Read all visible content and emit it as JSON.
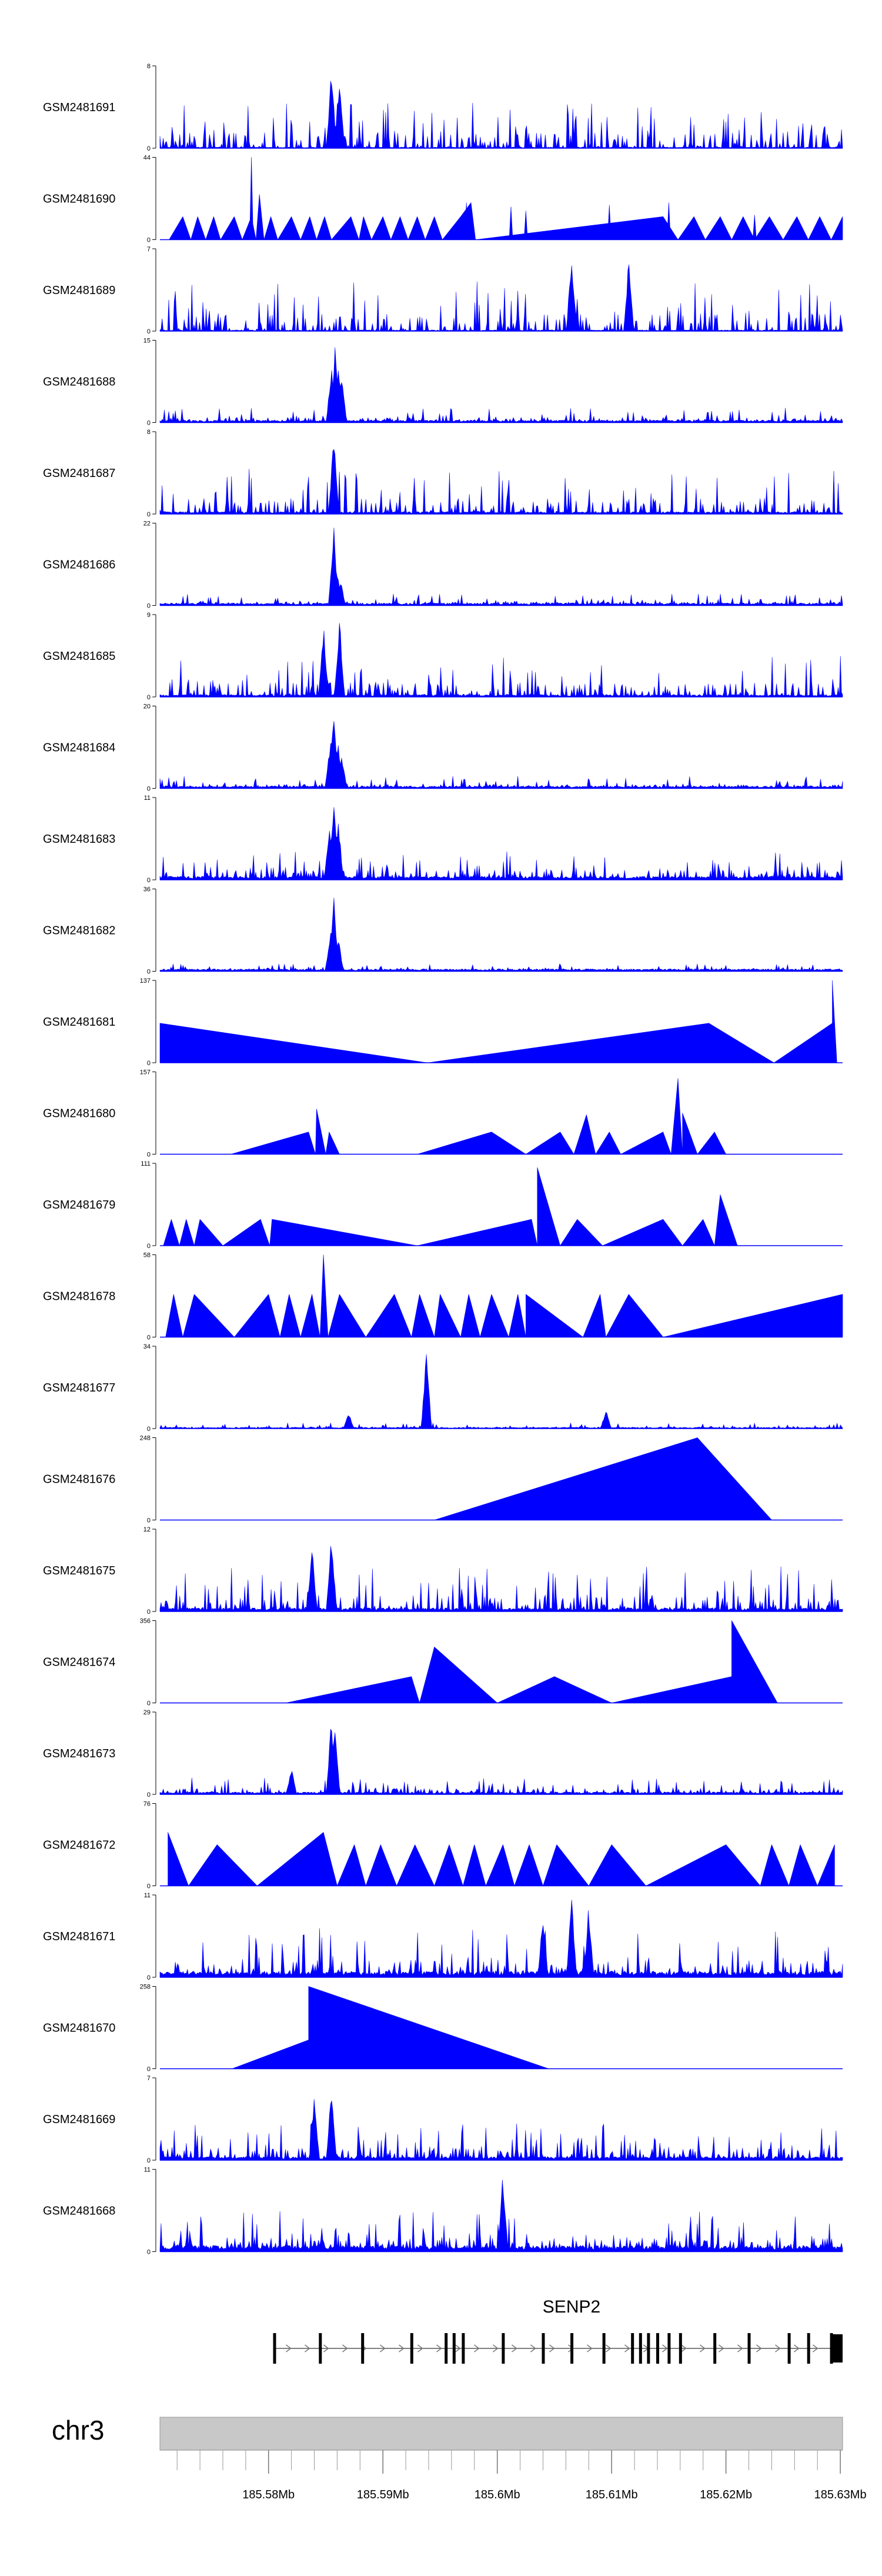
{
  "chart_data": {
    "type": "area",
    "title": "",
    "color": "#0000ff",
    "x_range_mb": [
      185.5705,
      185.6302
    ],
    "x_ticks": [
      {
        "value": 185.58,
        "label": "185.58Mb"
      },
      {
        "value": 185.59,
        "label": "185.59Mb"
      },
      {
        "value": 185.6,
        "label": "185.6Mb"
      },
      {
        "value": 185.61,
        "label": "185.61Mb"
      },
      {
        "value": 185.62,
        "label": "185.62Mb"
      },
      {
        "value": 185.63,
        "label": "185.63Mb"
      }
    ],
    "tracks": [
      {
        "name": "GSM2481691",
        "ymax": "8",
        "style": "dense",
        "baseline": 0.01,
        "noise": 0.55,
        "peaks": [
          [
            185.5855,
            1.0
          ],
          [
            185.5862,
            0.95
          ]
        ]
      },
      {
        "name": "GSM2481690",
        "ymax": "44",
        "style": "tri",
        "points": [
          [
            185.5713,
            0.0
          ],
          [
            185.5725,
            0.28
          ],
          [
            185.5732,
            0.0
          ],
          [
            185.5738,
            0.28
          ],
          [
            185.5745,
            0.0
          ],
          [
            185.5752,
            0.28
          ],
          [
            185.5758,
            0.0
          ],
          [
            185.577,
            0.28
          ],
          [
            185.5777,
            0.0
          ],
          [
            185.5785,
            0.28
          ],
          [
            185.5789,
            0.0
          ],
          [
            185.5792,
            0.55
          ],
          [
            185.5796,
            0.0
          ],
          [
            185.5802,
            0.28
          ],
          [
            185.5808,
            0.0
          ],
          [
            185.582,
            0.28
          ],
          [
            185.5828,
            0.0
          ],
          [
            185.5836,
            0.28
          ],
          [
            185.5842,
            0.0
          ],
          [
            185.5849,
            0.28
          ],
          [
            185.5855,
            0.0
          ],
          [
            185.5872,
            0.28
          ],
          [
            185.5879,
            0.0
          ],
          [
            185.5883,
            0.28
          ],
          [
            185.589,
            0.0
          ],
          [
            185.59,
            0.28
          ],
          [
            185.5907,
            0.0
          ],
          [
            185.5915,
            0.28
          ],
          [
            185.5922,
            0.0
          ],
          [
            185.593,
            0.28
          ],
          [
            185.5937,
            0.0
          ],
          [
            185.5945,
            0.28
          ],
          [
            185.5952,
            0.0
          ],
          [
            185.5968,
            0.28
          ],
          [
            185.5977,
            0.45
          ],
          [
            185.5981,
            0.0
          ]
        ],
        "peaks": [
          [
            185.5785,
            1.0
          ],
          [
            185.5973,
            0.45
          ],
          [
            185.6012,
            0.4
          ],
          [
            185.6025,
            0.35
          ],
          [
            185.6098,
            0.42
          ],
          [
            185.615,
            0.45
          ],
          [
            185.6225,
            0.3
          ]
        ],
        "tail": [
          [
            185.6145,
            0.28
          ],
          [
            185.6158,
            0.0
          ],
          [
            185.6172,
            0.28
          ],
          [
            185.6182,
            0.0
          ],
          [
            185.6195,
            0.28
          ],
          [
            185.6205,
            0.0
          ],
          [
            185.6215,
            0.28
          ],
          [
            185.6225,
            0.0
          ],
          [
            185.6238,
            0.28
          ],
          [
            185.625,
            0.0
          ],
          [
            185.6262,
            0.28
          ],
          [
            185.6272,
            0.0
          ],
          [
            185.6282,
            0.28
          ],
          [
            185.6292,
            0.0
          ],
          [
            185.6302,
            0.28
          ]
        ]
      },
      {
        "name": "GSM2481689",
        "ymax": "7",
        "style": "dense",
        "baseline": 0.01,
        "noise": 0.6,
        "peaks": [
          [
            185.6065,
            1.0
          ],
          [
            185.6115,
            0.9
          ]
        ]
      },
      {
        "name": "GSM2481688",
        "ymax": "15",
        "style": "dense",
        "baseline": 0.02,
        "noise": 0.18,
        "peaks": [
          [
            185.5855,
            0.7
          ],
          [
            185.5858,
            0.95
          ],
          [
            185.5861,
            0.8
          ],
          [
            185.5864,
            0.55
          ]
        ]
      },
      {
        "name": "GSM2481687",
        "ymax": "8",
        "style": "dense",
        "baseline": 0.02,
        "noise": 0.55,
        "peaks": [
          [
            185.5857,
            1.0
          ]
        ]
      },
      {
        "name": "GSM2481686",
        "ymax": "22",
        "style": "dense",
        "baseline": 0.02,
        "noise": 0.14,
        "peaks": [
          [
            185.5857,
            1.0
          ],
          [
            185.586,
            0.4
          ],
          [
            185.5863,
            0.3
          ]
        ]
      },
      {
        "name": "GSM2481685",
        "ymax": "9",
        "style": "dense",
        "baseline": 0.02,
        "noise": 0.5,
        "peaks": [
          [
            185.5862,
            1.0
          ],
          [
            185.5848,
            0.9
          ]
        ]
      },
      {
        "name": "GSM2481684",
        "ymax": "20",
        "style": "dense",
        "baseline": 0.02,
        "noise": 0.15,
        "peaks": [
          [
            185.5854,
            0.6
          ],
          [
            185.5857,
            1.0
          ],
          [
            185.5861,
            0.55
          ],
          [
            185.5864,
            0.4
          ]
        ]
      },
      {
        "name": "GSM2481683",
        "ymax": "11",
        "style": "dense",
        "baseline": 0.03,
        "noise": 0.35,
        "peaks": [
          [
            185.5853,
            0.7
          ],
          [
            185.5857,
            1.0
          ],
          [
            185.5861,
            0.75
          ]
        ]
      },
      {
        "name": "GSM2481682",
        "ymax": "36",
        "style": "dense",
        "baseline": 0.02,
        "noise": 0.09,
        "peaks": [
          [
            185.5854,
            0.5
          ],
          [
            185.5857,
            1.0
          ],
          [
            185.5861,
            0.45
          ]
        ]
      },
      {
        "name": "GSM2481681",
        "ymax": "137",
        "style": "tri",
        "points": [
          [
            185.5705,
            0.0
          ],
          [
            185.5705,
            0.48
          ],
          [
            185.5939,
            0.0
          ],
          [
            185.6185,
            0.48
          ],
          [
            185.6242,
            0.0
          ],
          [
            185.6293,
            0.48
          ],
          [
            185.6293,
            1.0
          ],
          [
            185.6297,
            0.0
          ]
        ]
      },
      {
        "name": "GSM2481680",
        "ymax": "157",
        "style": "tri",
        "points": [
          [
            185.5767,
            0.0
          ],
          [
            185.5835,
            0.27
          ],
          [
            185.5841,
            0.0
          ],
          [
            185.5842,
            0.55
          ],
          [
            185.585,
            0.0
          ],
          [
            185.5853,
            0.27
          ],
          [
            185.5862,
            0.0
          ],
          [
            185.593,
            0.0
          ],
          [
            185.5995,
            0.27
          ],
          [
            185.6025,
            0.0
          ],
          [
            185.6055,
            0.27
          ],
          [
            185.6067,
            0.0
          ],
          [
            185.6078,
            0.48
          ],
          [
            185.6086,
            0.0
          ],
          [
            185.6098,
            0.27
          ],
          [
            185.6108,
            0.0
          ],
          [
            185.6145,
            0.27
          ],
          [
            185.6152,
            0.0
          ],
          [
            185.6158,
            0.92
          ],
          [
            185.6162,
            0.0
          ],
          [
            185.6162,
            0.5
          ],
          [
            185.6175,
            0.0
          ],
          [
            185.619,
            0.27
          ],
          [
            185.62,
            0.0
          ]
        ]
      },
      {
        "name": "GSM2481679",
        "ymax": "111",
        "style": "tri",
        "points": [
          [
            185.5708,
            0.0
          ],
          [
            185.5715,
            0.32
          ],
          [
            185.5722,
            0.0
          ],
          [
            185.5728,
            0.32
          ],
          [
            185.5735,
            0.0
          ],
          [
            185.574,
            0.32
          ],
          [
            185.576,
            0.0
          ],
          [
            185.5793,
            0.32
          ],
          [
            185.5801,
            0.0
          ],
          [
            185.5803,
            0.32
          ],
          [
            185.593,
            0.0
          ],
          [
            185.603,
            0.32
          ],
          [
            185.6035,
            0.0
          ],
          [
            185.6035,
            0.95
          ],
          [
            185.6055,
            0.0
          ],
          [
            185.607,
            0.32
          ],
          [
            185.6092,
            0.0
          ],
          [
            185.6145,
            0.32
          ],
          [
            185.6162,
            0.0
          ],
          [
            185.618,
            0.32
          ],
          [
            185.619,
            0.0
          ],
          [
            185.6195,
            0.62
          ],
          [
            185.621,
            0.0
          ]
        ]
      },
      {
        "name": "GSM2481678",
        "ymax": "58",
        "style": "tri",
        "points": [
          [
            185.571,
            0.0
          ],
          [
            185.5717,
            0.52
          ],
          [
            185.5725,
            0.0
          ],
          [
            185.5735,
            0.52
          ],
          [
            185.577,
            0.0
          ],
          [
            185.58,
            0.52
          ],
          [
            185.581,
            0.0
          ],
          [
            185.5818,
            0.52
          ],
          [
            185.5828,
            0.0
          ],
          [
            185.5838,
            0.52
          ],
          [
            185.5845,
            0.0
          ],
          [
            185.5848,
            1.0
          ],
          [
            185.5852,
            0.0
          ],
          [
            185.5862,
            0.52
          ],
          [
            185.5885,
            0.0
          ],
          [
            185.591,
            0.52
          ],
          [
            185.5925,
            0.0
          ],
          [
            185.5932,
            0.52
          ],
          [
            185.5945,
            0.0
          ],
          [
            185.595,
            0.52
          ],
          [
            185.5968,
            0.0
          ],
          [
            185.5975,
            0.52
          ],
          [
            185.5985,
            0.0
          ],
          [
            185.5995,
            0.52
          ],
          [
            185.601,
            0.0
          ],
          [
            185.6018,
            0.52
          ],
          [
            185.6025,
            0.0
          ],
          [
            185.6025,
            0.52
          ],
          [
            185.6075,
            0.0
          ],
          [
            185.609,
            0.52
          ],
          [
            185.6095,
            0.0
          ],
          [
            185.6115,
            0.52
          ],
          [
            185.6145,
            0.0
          ],
          [
            185.6302,
            0.52
          ]
        ]
      },
      {
        "name": "GSM2481677",
        "ymax": "34",
        "style": "dense",
        "baseline": 0.01,
        "noise": 0.07,
        "peaks": [
          [
            185.5938,
            1.0
          ],
          [
            185.6095,
            0.25
          ],
          [
            185.587,
            0.2
          ]
        ]
      },
      {
        "name": "GSM2481676",
        "ymax": "248",
        "style": "tri",
        "points": [
          [
            185.5945,
            0.0
          ],
          [
            185.6175,
            1.0
          ],
          [
            185.624,
            0.0
          ]
        ]
      },
      {
        "name": "GSM2481675",
        "ymax": "12",
        "style": "dense",
        "baseline": 0.03,
        "noise": 0.55,
        "peaks": [
          [
            185.5855,
            1.0
          ],
          [
            185.5838,
            0.8
          ]
        ]
      },
      {
        "name": "GSM2481674",
        "ymax": "356",
        "style": "tri",
        "points": [
          [
            185.5815,
            0.0
          ],
          [
            185.5925,
            0.32
          ],
          [
            185.5932,
            0.0
          ],
          [
            185.5945,
            0.68
          ],
          [
            185.6,
            0.0
          ],
          [
            185.605,
            0.32
          ],
          [
            185.61,
            0.0
          ],
          [
            185.6205,
            0.32
          ],
          [
            185.6205,
            1.0
          ],
          [
            185.6245,
            0.0
          ]
        ]
      },
      {
        "name": "GSM2481673",
        "ymax": "29",
        "style": "dense",
        "baseline": 0.02,
        "noise": 0.2,
        "peaks": [
          [
            185.5855,
            1.0
          ],
          [
            185.5858,
            0.85
          ],
          [
            185.582,
            0.35
          ]
        ]
      },
      {
        "name": "GSM2481672",
        "ymax": "76",
        "style": "tri",
        "points": [
          [
            185.5712,
            0.0
          ],
          [
            185.5712,
            0.65
          ],
          [
            185.573,
            0.0
          ],
          [
            185.5755,
            0.5
          ],
          [
            185.579,
            0.0
          ],
          [
            185.5848,
            0.65
          ],
          [
            185.586,
            0.0
          ],
          [
            185.5875,
            0.5
          ],
          [
            185.5885,
            0.0
          ],
          [
            185.5898,
            0.5
          ],
          [
            185.5912,
            0.0
          ],
          [
            185.5928,
            0.5
          ],
          [
            185.5945,
            0.0
          ],
          [
            185.5958,
            0.5
          ],
          [
            185.597,
            0.0
          ],
          [
            185.598,
            0.5
          ],
          [
            185.599,
            0.0
          ],
          [
            185.6005,
            0.5
          ],
          [
            185.6015,
            0.0
          ],
          [
            185.6028,
            0.5
          ],
          [
            185.604,
            0.0
          ],
          [
            185.6052,
            0.5
          ],
          [
            185.608,
            0.0
          ],
          [
            185.61,
            0.5
          ],
          [
            185.613,
            0.0
          ],
          [
            185.62,
            0.5
          ],
          [
            185.623,
            0.0
          ],
          [
            185.624,
            0.5
          ],
          [
            185.6255,
            0.0
          ],
          [
            185.6265,
            0.5
          ],
          [
            185.628,
            0.0
          ],
          [
            185.6295,
            0.5
          ]
        ]
      },
      {
        "name": "GSM2481671",
        "ymax": "11",
        "style": "dense",
        "baseline": 0.05,
        "noise": 0.6,
        "peaks": [
          [
            185.6065,
            1.0
          ],
          [
            185.608,
            0.9
          ],
          [
            185.604,
            0.8
          ]
        ]
      },
      {
        "name": "GSM2481670",
        "ymax": "258",
        "style": "tri",
        "points": [
          [
            185.5768,
            0.0
          ],
          [
            185.5835,
            0.35
          ],
          [
            185.5835,
            1.0
          ],
          [
            185.6045,
            0.0
          ]
        ]
      },
      {
        "name": "GSM2481669",
        "ymax": "7",
        "style": "dense",
        "baseline": 0.03,
        "noise": 0.45,
        "peaks": [
          [
            185.5855,
            1.0
          ],
          [
            185.584,
            0.85
          ]
        ]
      },
      {
        "name": "GSM2481668",
        "ymax": "11",
        "style": "dense",
        "baseline": 0.05,
        "noise": 0.5,
        "peaks": [
          [
            185.6005,
            1.0
          ]
        ]
      }
    ],
    "gene": {
      "name": "SENP2",
      "start_mb": 185.5805,
      "end_mb": 185.6302,
      "exons_mb": [
        185.5805,
        185.5845,
        185.5882,
        185.5925,
        185.5955,
        185.5962,
        185.597,
        185.6005,
        185.604,
        185.6065,
        185.6093,
        185.6118,
        185.6125,
        185.6132,
        185.614,
        185.615,
        185.616,
        185.619,
        185.622,
        185.6255,
        185.6272,
        185.6292
      ],
      "utr_end": [
        185.6293,
        185.6302
      ]
    },
    "chromosome": "chr3"
  }
}
